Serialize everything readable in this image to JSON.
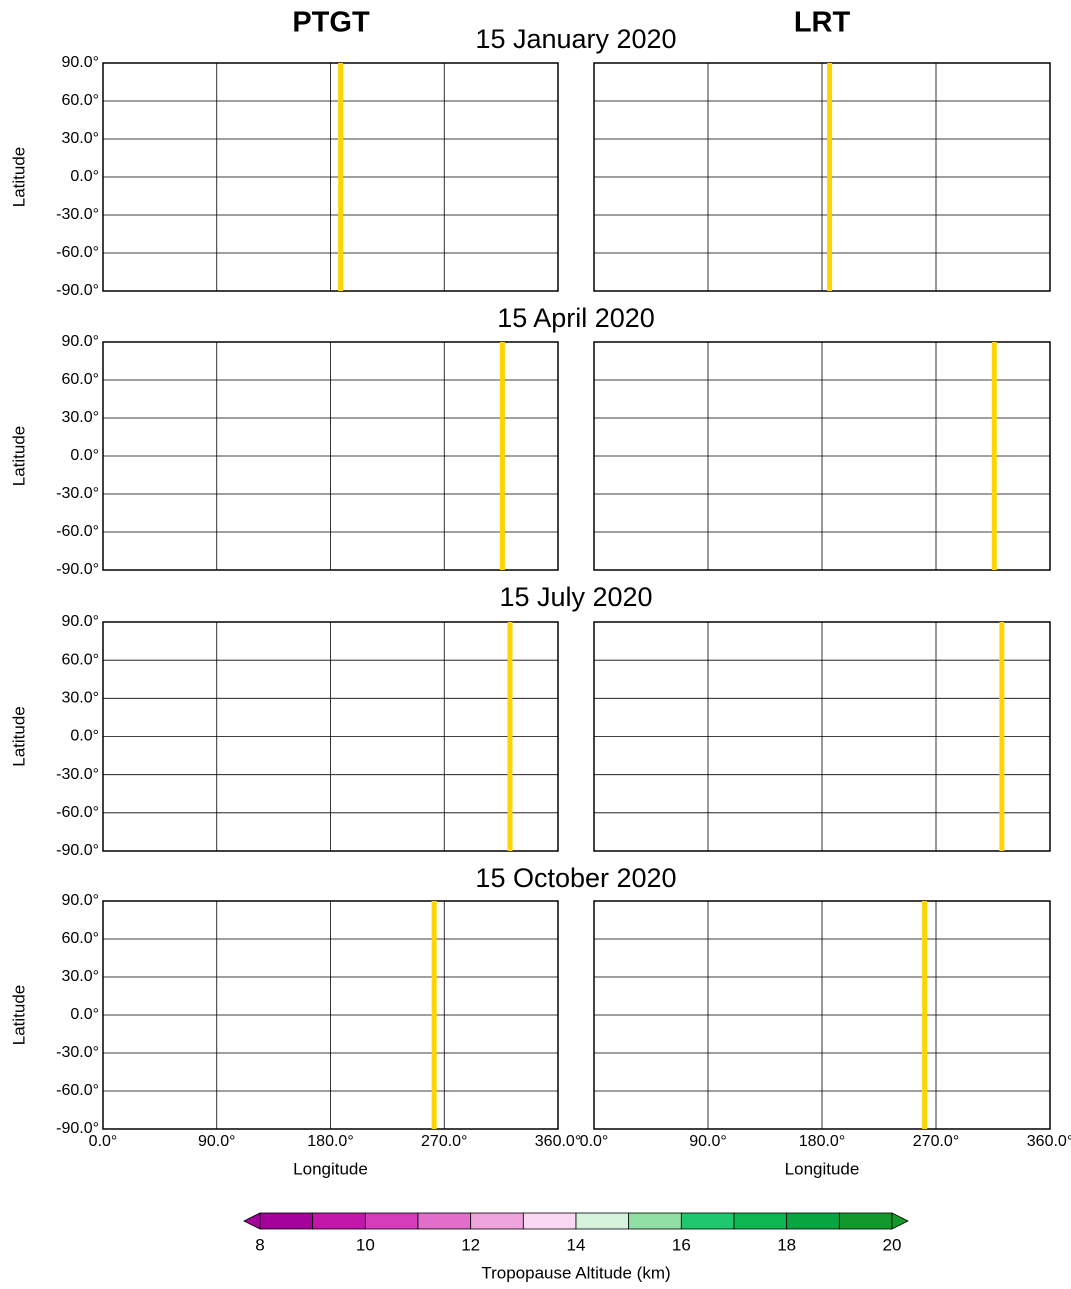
{
  "columns": [
    "PTGT",
    "LRT"
  ],
  "rows": [
    {
      "title": "15 January 2020",
      "marker_longitude": [
        188,
        186
      ]
    },
    {
      "title": "15 April 2020",
      "marker_longitude": [
        316,
        316
      ]
    },
    {
      "title": "15 July 2020",
      "marker_longitude": [
        322,
        322
      ]
    },
    {
      "title": "15 October 2020",
      "marker_longitude": [
        262,
        261
      ]
    }
  ],
  "x_label": "Longitude",
  "y_label": "Latitude",
  "xlim": [
    0,
    360
  ],
  "ylim": [
    -90,
    90
  ],
  "xticks": [
    {
      "value": 0,
      "label": "0.0°"
    },
    {
      "value": 90,
      "label": "90.0°"
    },
    {
      "value": 180,
      "label": "180.0°"
    },
    {
      "value": 270,
      "label": "270.0°"
    },
    {
      "value": 360,
      "label": "360.0°"
    }
  ],
  "yticks": [
    {
      "value": 90,
      "label": "90.0°"
    },
    {
      "value": 60,
      "label": "60.0°"
    },
    {
      "value": 30,
      "label": "30.0°"
    },
    {
      "value": 0,
      "label": "0.0°"
    },
    {
      "value": -30,
      "label": "-30.0°"
    },
    {
      "value": -60,
      "label": "-60.0°"
    },
    {
      "value": -90,
      "label": "-90.0°"
    }
  ],
  "marker_color": "#ffd400",
  "colorbar": {
    "label": "Tropopause Altitude (km)",
    "lim": [
      8,
      20
    ],
    "bounds": [
      8,
      9,
      10,
      11,
      12,
      13,
      14,
      15,
      16,
      17,
      18,
      19,
      20
    ],
    "colors": [
      "#a5019b",
      "#c117ab",
      "#d53cbb",
      "#e36dcb",
      "#efa3dd",
      "#fad8f1",
      "#d4f2dc",
      "#8fdea4",
      "#1fc86c",
      "#0cb650",
      "#08a540",
      "#12992b"
    ],
    "under_color": "#a5019b",
    "over_color": "#12992b",
    "ticks": [
      8,
      10,
      12,
      14,
      16,
      18,
      20
    ]
  }
}
